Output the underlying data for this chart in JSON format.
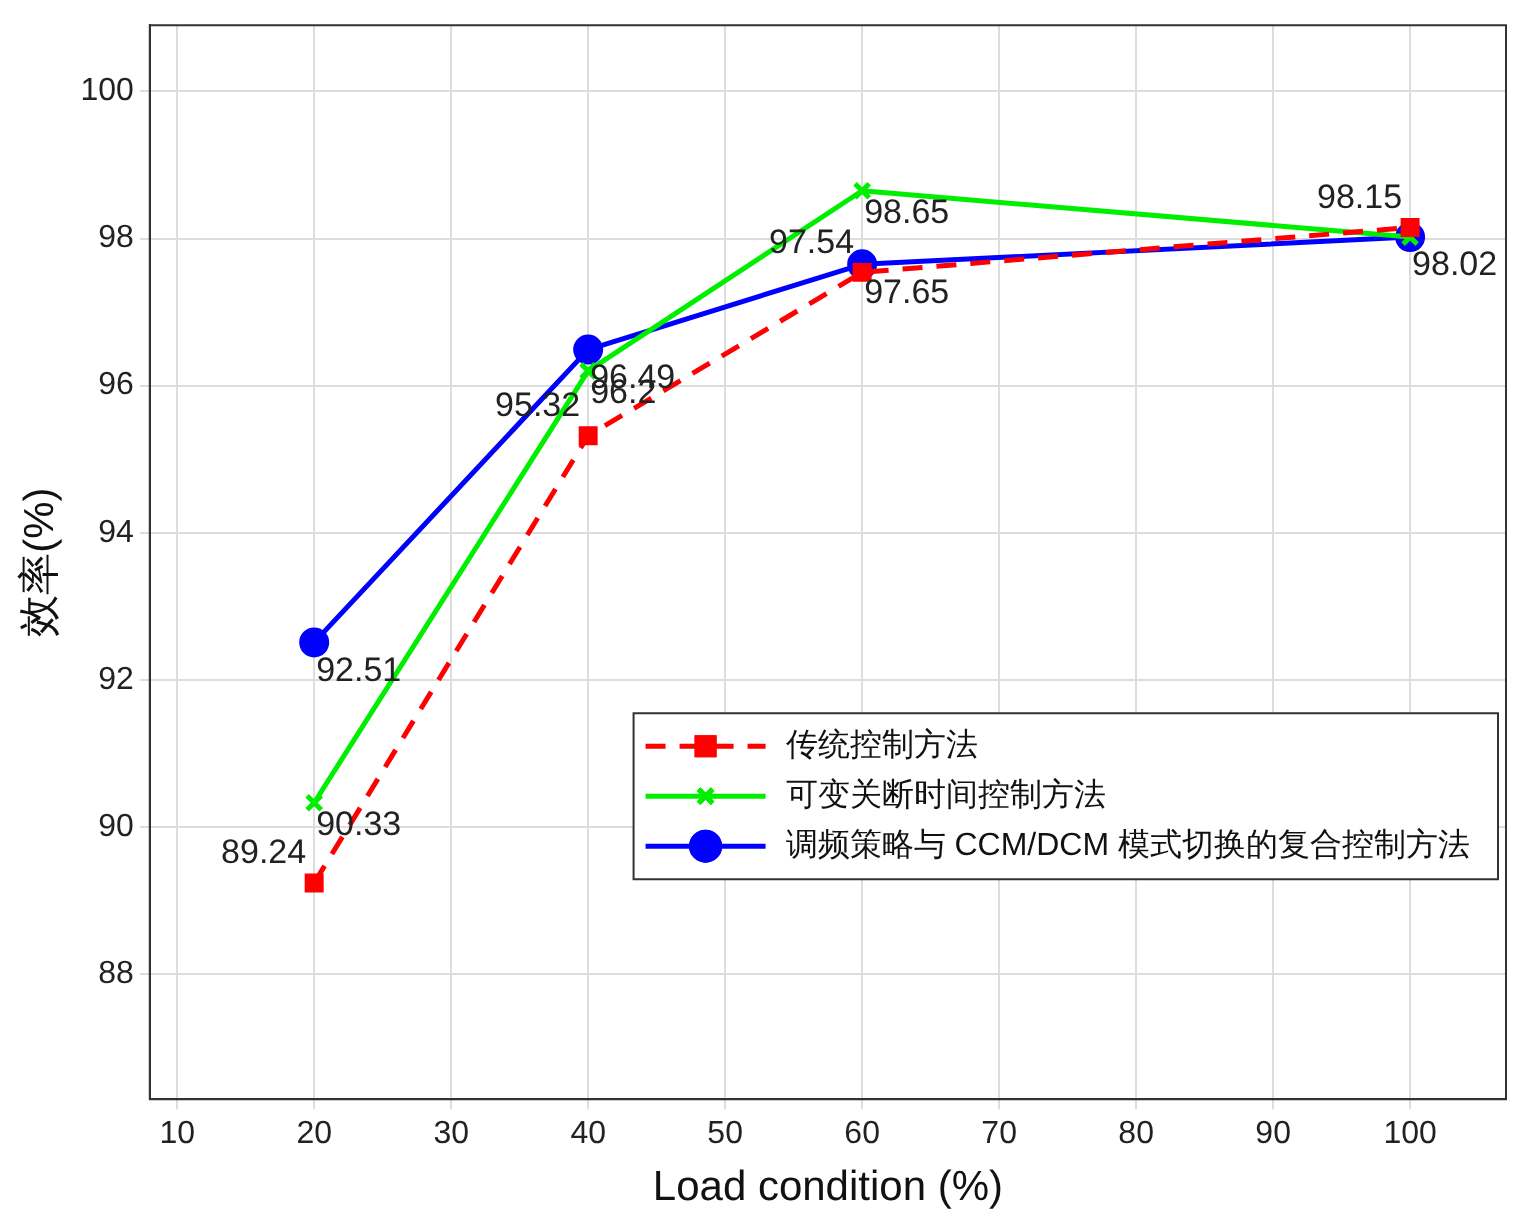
{
  "chart_data": {
    "type": "line",
    "xlabel": "Load condition (%)",
    "ylabel": "效率(%)",
    "x": [
      20,
      40,
      60,
      100
    ],
    "xlim": [
      8,
      107
    ],
    "xticks": [
      10,
      20,
      30,
      40,
      50,
      60,
      70,
      80,
      90,
      100
    ],
    "ylim": [
      86.3,
      100.9
    ],
    "yticks": [
      88,
      90,
      92,
      94,
      96,
      98,
      100
    ],
    "grid": true,
    "legend": "bottom right",
    "series": [
      {
        "name": "传统控制方法",
        "color": "#ff0000",
        "marker": "square",
        "line_style": "dashed",
        "values": [
          89.24,
          95.32,
          97.54,
          98.15
        ],
        "value_labels": [
          "89.24",
          "95.32",
          "97.54",
          "98.15"
        ]
      },
      {
        "name": "可变关断时间控制方法",
        "color": "#00ee00",
        "marker": "cross",
        "line_style": "solid",
        "values": [
          90.33,
          96.2,
          98.65,
          98.02
        ],
        "value_labels": [
          "90.33",
          "96.2",
          "98.65",
          null
        ]
      },
      {
        "name": "调频策略与 CCM/DCM 模式切换的复合控制方法",
        "color": "#0000ff",
        "marker": "circle",
        "line_style": "solid",
        "values": [
          92.51,
          96.49,
          97.65,
          98.02
        ],
        "value_labels": [
          "92.51",
          "96.49",
          "97.65",
          "98.02"
        ]
      }
    ]
  }
}
